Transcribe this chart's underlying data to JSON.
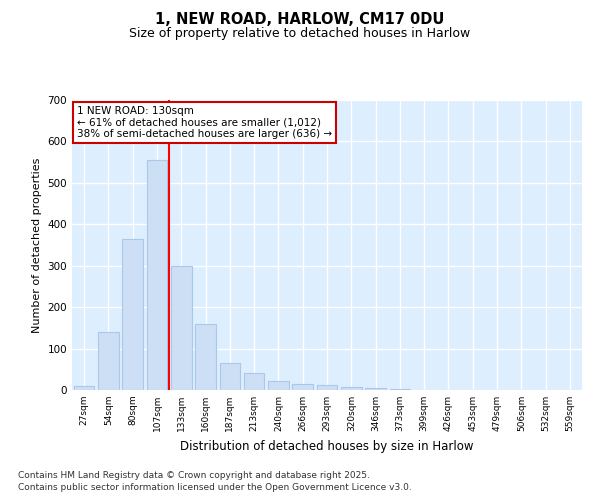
{
  "title1": "1, NEW ROAD, HARLOW, CM17 0DU",
  "title2": "Size of property relative to detached houses in Harlow",
  "xlabel": "Distribution of detached houses by size in Harlow",
  "ylabel": "Number of detached properties",
  "categories": [
    "27sqm",
    "54sqm",
    "80sqm",
    "107sqm",
    "133sqm",
    "160sqm",
    "187sqm",
    "213sqm",
    "240sqm",
    "266sqm",
    "293sqm",
    "320sqm",
    "346sqm",
    "373sqm",
    "399sqm",
    "426sqm",
    "453sqm",
    "479sqm",
    "506sqm",
    "532sqm",
    "559sqm"
  ],
  "values": [
    10,
    140,
    365,
    555,
    300,
    160,
    65,
    40,
    22,
    15,
    12,
    8,
    4,
    2,
    1,
    0,
    0,
    0,
    0,
    0,
    0
  ],
  "bar_color": "#ccdff5",
  "bar_edge_color": "#aac8e8",
  "background_color": "#ddeeff",
  "plot_bg_color": "#ddeeff",
  "grid_color": "#ffffff",
  "red_line_x": 3.5,
  "annotation_title": "1 NEW ROAD: 130sqm",
  "annotation_line1": "← 61% of detached houses are smaller (1,012)",
  "annotation_line2": "38% of semi-detached houses are larger (636) →",
  "annotation_box_color": "#cc0000",
  "ylim": [
    0,
    700
  ],
  "yticks": [
    0,
    100,
    200,
    300,
    400,
    500,
    600,
    700
  ],
  "footnote1": "Contains HM Land Registry data © Crown copyright and database right 2025.",
  "footnote2": "Contains public sector information licensed under the Open Government Licence v3.0."
}
